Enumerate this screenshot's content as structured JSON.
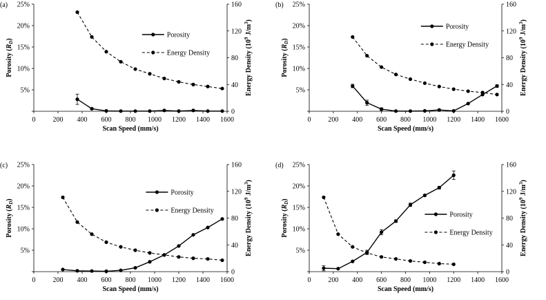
{
  "colors": {
    "ink": "#000000",
    "background": "#ffffff"
  },
  "chart_data": [
    {
      "type": "line",
      "panel_label": "(a)",
      "xlabel": "Scan Speed (mm/s)",
      "ylabel_left": "Porosity (R_D)",
      "ylabel_right": "Energy Density (10^9 J/m^3)",
      "xlim": [
        0,
        1600
      ],
      "xticks": [
        0,
        200,
        400,
        600,
        800,
        1000,
        1200,
        1400,
        1600
      ],
      "ylim_left": [
        0,
        25
      ],
      "yticks_left": [
        "",
        "5%",
        "10%",
        "15%",
        "20%",
        "25%"
      ],
      "ylim_right": [
        0,
        160
      ],
      "yticks_right": [
        "0",
        "40",
        "80",
        "120",
        "160"
      ],
      "legend": [
        "Porosity",
        "Energy Density"
      ],
      "legend_position": "right",
      "series": [
        {
          "name": "Porosity",
          "axis": "left",
          "style": "solid",
          "x": [
            360,
            480,
            600,
            720,
            840,
            960,
            1080,
            1200,
            1320,
            1440,
            1560
          ],
          "y": [
            2.8,
            0.6,
            0.1,
            0.05,
            0.05,
            0.05,
            0.2,
            0.05,
            0.2,
            0.05,
            0.05
          ],
          "err": [
            1.2,
            0.2,
            0,
            0,
            0,
            0,
            0,
            0,
            0,
            0,
            0
          ]
        },
        {
          "name": "Energy Density",
          "axis": "right",
          "style": "dashed",
          "x": [
            360,
            480,
            600,
            720,
            840,
            960,
            1080,
            1200,
            1320,
            1440,
            1560
          ],
          "y": [
            148,
            111,
            89,
            74,
            63,
            56,
            49,
            44,
            40,
            37,
            34
          ]
        }
      ]
    },
    {
      "type": "line",
      "panel_label": "(b)",
      "xlabel": "Scan Speed (mm/s)",
      "ylabel_left": "Porosity (R_D)",
      "ylabel_right": "Energy Density (10^9 J/m^3)",
      "xlim": [
        0,
        1600
      ],
      "xticks": [
        0,
        200,
        400,
        600,
        800,
        1000,
        1200,
        1400,
        1600
      ],
      "ylim_left": [
        0,
        25
      ],
      "yticks_left": [
        "",
        "5%",
        "10%",
        "15%",
        "20%",
        "25%"
      ],
      "ylim_right": [
        0,
        160
      ],
      "yticks_right": [
        "0",
        "40",
        "80",
        "120",
        "160"
      ],
      "legend": [
        "Porosity",
        "Energy Density"
      ],
      "legend_position": "top-right",
      "series": [
        {
          "name": "Porosity",
          "axis": "left",
          "style": "solid",
          "x": [
            360,
            480,
            600,
            720,
            840,
            960,
            1080,
            1200,
            1320,
            1440,
            1560
          ],
          "y": [
            5.9,
            2.0,
            0.5,
            0.05,
            0.05,
            0.1,
            0.3,
            0.1,
            1.8,
            3.9,
            5.9
          ],
          "err": [
            0.4,
            0.6,
            0.3,
            0,
            0,
            0,
            0,
            0,
            0,
            0,
            0.3
          ]
        },
        {
          "name": "Energy Density",
          "axis": "right",
          "style": "dashed",
          "x": [
            360,
            480,
            600,
            720,
            840,
            960,
            1080,
            1200,
            1320,
            1440,
            1560
          ],
          "y": [
            111,
            83,
            66,
            55,
            48,
            42,
            37,
            33,
            30,
            28,
            25
          ]
        }
      ]
    },
    {
      "type": "line",
      "panel_label": "(c)",
      "xlabel": "Scan Speed (mm/s)",
      "ylabel_left": "Porosity (R_D)",
      "ylabel_right": "Energy Density (10^9 J/m^3)",
      "xlim": [
        0,
        1600
      ],
      "xticks": [
        0,
        200,
        400,
        600,
        800,
        1000,
        1200,
        1400,
        1600
      ],
      "ylim_left": [
        0,
        25
      ],
      "yticks_left": [
        "",
        "5%",
        "10%",
        "15%",
        "20%",
        "25%"
      ],
      "ylim_right": [
        0,
        160
      ],
      "yticks_right": [
        "0",
        "40",
        "80",
        "120",
        "160"
      ],
      "legend": [
        "Porosity",
        "Energy Density"
      ],
      "legend_position": "top-right",
      "series": [
        {
          "name": "Porosity",
          "axis": "left",
          "style": "solid",
          "x": [
            240,
            360,
            480,
            600,
            720,
            840,
            960,
            1080,
            1200,
            1320,
            1440,
            1560
          ],
          "y": [
            0.5,
            0.2,
            0.15,
            0.1,
            0.3,
            0.9,
            2.3,
            3.9,
            6.0,
            8.6,
            10.3,
            12.3
          ],
          "err": [
            0,
            0,
            0,
            0,
            0,
            0,
            0,
            0,
            0,
            0,
            0,
            0
          ]
        },
        {
          "name": "Energy Density",
          "axis": "right",
          "style": "dashed",
          "x": [
            240,
            360,
            480,
            600,
            720,
            840,
            960,
            1080,
            1200,
            1320,
            1440,
            1560
          ],
          "y": [
            111,
            74,
            56,
            44,
            37,
            32,
            28,
            25,
            22,
            20,
            19,
            17
          ]
        }
      ]
    },
    {
      "type": "line",
      "panel_label": "(d)",
      "xlabel": "Scan Speed (mm/s)",
      "ylabel_left": "Porosity (R_D)",
      "ylabel_right": "Energy Density (10^9 J/m^3)",
      "xlim": [
        0,
        1600
      ],
      "xticks": [
        0,
        200,
        400,
        600,
        800,
        1000,
        1200,
        1400,
        1600
      ],
      "ylim_left": [
        0,
        25
      ],
      "yticks_left": [
        "",
        "5%",
        "10%",
        "15%",
        "20%",
        "25%"
      ],
      "ylim_right": [
        0,
        160
      ],
      "yticks_right": [
        "0",
        "40",
        "80",
        "120",
        "160"
      ],
      "legend": [
        "Porosity",
        "Energy Density"
      ],
      "legend_position": "right",
      "series": [
        {
          "name": "Porosity",
          "axis": "left",
          "style": "solid",
          "x": [
            120,
            240,
            360,
            480,
            600,
            720,
            840,
            960,
            1080,
            1200
          ],
          "y": [
            0.8,
            0.7,
            2.4,
            4.5,
            9.2,
            11.8,
            15.6,
            17.8,
            19.6,
            22.5
          ],
          "err": [
            0.6,
            0,
            0,
            0.5,
            0.6,
            0.3,
            0.4,
            0.2,
            0.3,
            1.0
          ]
        },
        {
          "name": "Energy Density",
          "axis": "right",
          "style": "dashed",
          "x": [
            120,
            240,
            360,
            480,
            600,
            720,
            840,
            960,
            1080,
            1200
          ],
          "y": [
            111,
            56,
            37,
            28,
            22,
            19,
            16,
            14,
            12,
            11
          ]
        }
      ]
    }
  ]
}
